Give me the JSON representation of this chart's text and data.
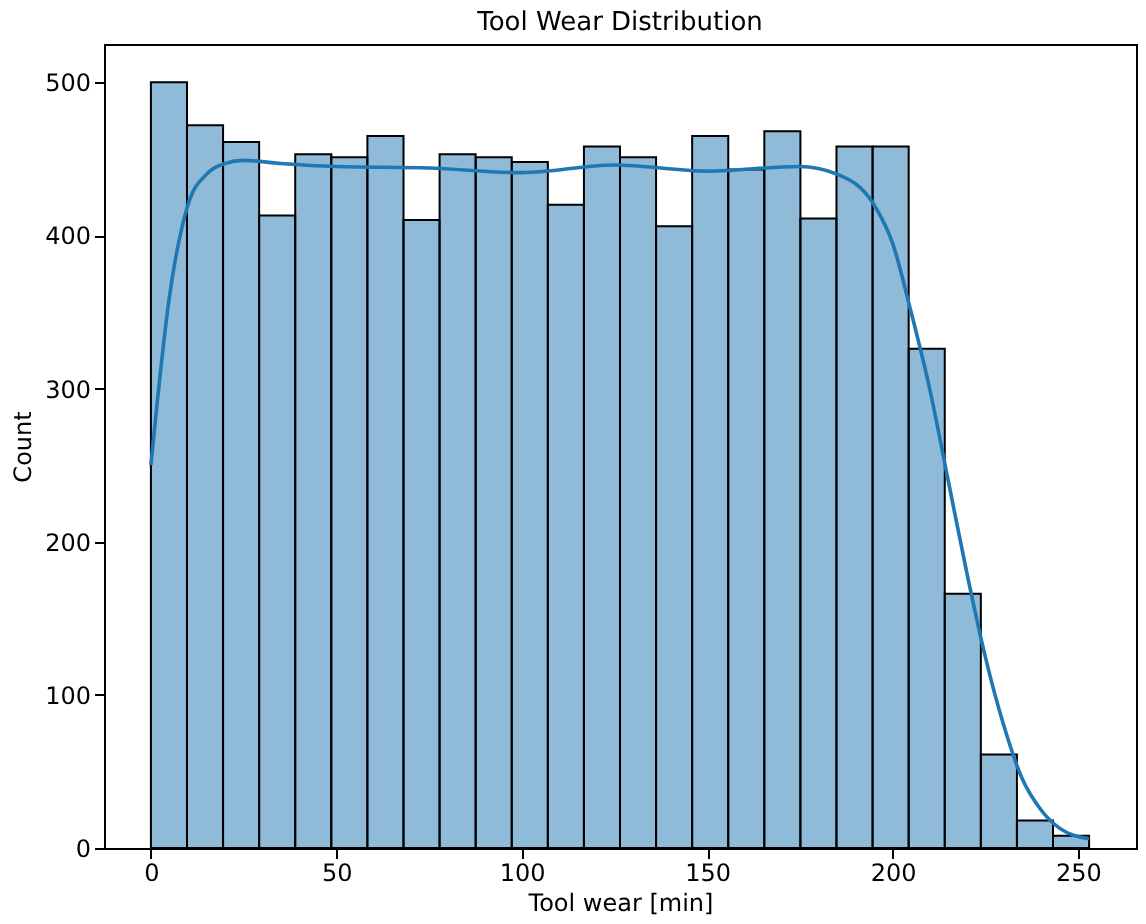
{
  "chart_data": {
    "type": "histogram",
    "title": "Tool Wear Distribution",
    "xlabel": "Tool wear [min]",
    "ylabel": "Count",
    "xlim": [
      -12.65,
      265.65
    ],
    "xticks": [
      0,
      50,
      100,
      150,
      200,
      250
    ],
    "ylim": [
      0,
      525
    ],
    "yticks": [
      0,
      100,
      200,
      300,
      400,
      500
    ],
    "grid": false,
    "series": [
      {
        "color": "#1f77b4",
        "bins": [
          0,
          9.73,
          19.46,
          29.19,
          38.92,
          48.65,
          58.38,
          68.12,
          77.85,
          87.58,
          97.31,
          107.04,
          116.77,
          126.5,
          136.23,
          145.96,
          155.69,
          165.42,
          175.15,
          184.88,
          194.62,
          204.35,
          214.08,
          223.81,
          233.54,
          243.27,
          253
        ],
        "values": [
          500,
          472,
          461,
          413,
          453,
          451,
          465,
          410,
          453,
          451,
          448,
          420,
          458,
          451,
          406,
          465,
          443,
          468,
          411,
          458,
          458,
          326,
          166,
          61,
          18,
          8
        ]
      },
      {
        "type": "line",
        "color": "#1f77b4",
        "x": [
          0,
          5,
          10,
          15,
          20,
          25,
          35,
          50,
          75,
          100,
          125,
          150,
          175,
          185,
          195,
          200,
          205,
          210,
          215,
          220,
          225,
          230,
          235,
          240,
          245,
          253
        ],
        "values": [
          250,
          360,
          420,
          440,
          447,
          449,
          447,
          445,
          444,
          441,
          446,
          442,
          445,
          440,
          420,
          395,
          350,
          300,
          240,
          180,
          125,
          80,
          45,
          25,
          13,
          6
        ]
      }
    ]
  }
}
